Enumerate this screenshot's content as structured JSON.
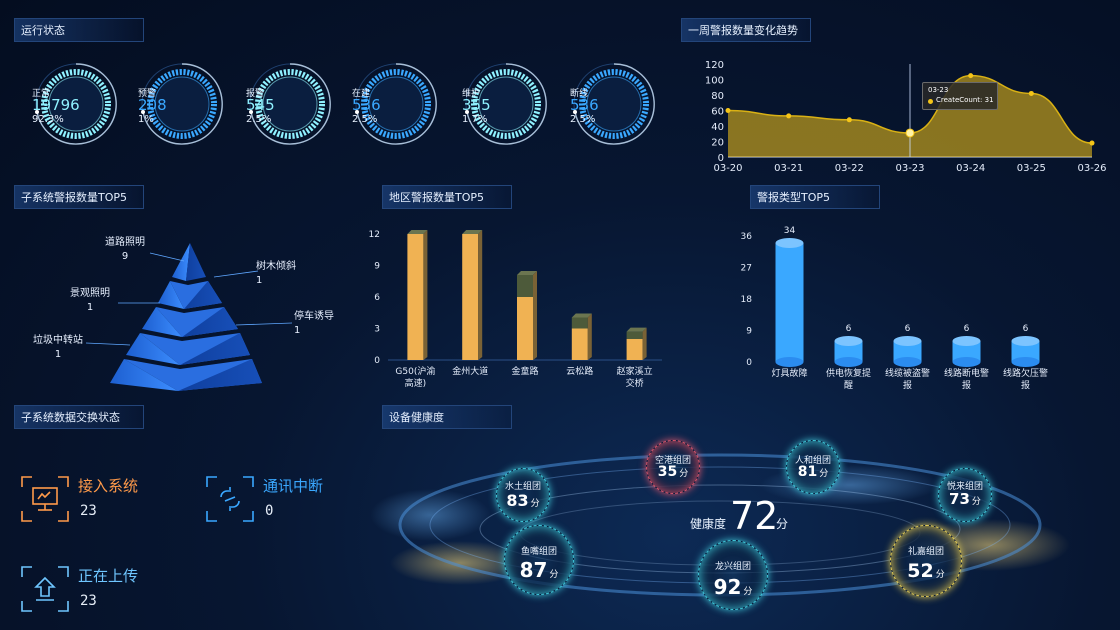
{
  "running": {
    "title": "运行状态",
    "gauges": [
      {
        "label": "正常",
        "value": "19796",
        "percent": "92.3%",
        "color": "#8ff1ff"
      },
      {
        "label": "预警",
        "value": "208",
        "percent": "1%",
        "color": "#3aa8ff"
      },
      {
        "label": "报警",
        "value": "545",
        "percent": "2.5%",
        "color": "#8ff1ff"
      },
      {
        "label": "在建",
        "value": "536",
        "percent": "2.5%",
        "color": "#3aa8ff"
      },
      {
        "label": "维护",
        "value": "355",
        "percent": "1.7%",
        "color": "#8ff1ff"
      },
      {
        "label": "断线",
        "value": "536",
        "percent": "2.5%",
        "color": "#3aa8ff"
      }
    ]
  },
  "trend": {
    "title": "一周警报数量变化趋势",
    "tooltip": {
      "date": "03-23",
      "label": "CreateCount: 31"
    }
  },
  "subsystem_top5": {
    "title": "子系统警报数量TOP5",
    "items": [
      {
        "name": "道路照明",
        "value": "9"
      },
      {
        "name": "树木倾斜",
        "value": "1"
      },
      {
        "name": "景观照明",
        "value": "1"
      },
      {
        "name": "停车诱导",
        "value": "1"
      },
      {
        "name": "垃圾中转站",
        "value": "1"
      }
    ]
  },
  "region_top5": {
    "title": "地区警报数量TOP5"
  },
  "type_top5": {
    "title": "警报类型TOP5"
  },
  "exchange": {
    "title": "子系统数据交换状态",
    "items": [
      {
        "label": "接入系统",
        "value": "23",
        "color": "#ff9a4a"
      },
      {
        "label": "通讯中断",
        "value": "0",
        "color": "#3aa8ff"
      },
      {
        "label": "正在上传",
        "value": "23",
        "color": "#6fc6ff"
      }
    ]
  },
  "health": {
    "title": "设备健康度",
    "center_label": "健康度",
    "center_value": "72",
    "unit": "分",
    "groups": [
      {
        "name": "水土组团",
        "score": "83"
      },
      {
        "name": "空港组团",
        "score": "35"
      },
      {
        "name": "人和组团",
        "score": "81"
      },
      {
        "name": "悦来组团",
        "score": "73"
      },
      {
        "name": "鱼嘴组团",
        "score": "87"
      },
      {
        "name": "龙兴组团",
        "score": "92"
      },
      {
        "name": "礼嘉组团",
        "score": "52"
      }
    ]
  },
  "chart_data": [
    {
      "type": "area",
      "title": "一周警报数量变化趋势",
      "x": [
        "03-20",
        "03-21",
        "03-22",
        "03-23",
        "03-24",
        "03-25",
        "03-26"
      ],
      "series": [
        {
          "values": [
            60,
            53,
            48,
            31,
            105,
            82,
            18
          ]
        }
      ],
      "ylim": [
        0,
        120
      ],
      "yticks": [
        0,
        20,
        40,
        60,
        80,
        100,
        120
      ],
      "color": "#f5c518"
    },
    {
      "type": "bar",
      "title": "地区警报数量TOP5",
      "categories": [
        "G50(沪渝高速)",
        "金州大道",
        "金童路",
        "云松路",
        "赵家溪立交桥"
      ],
      "values": [
        12,
        12,
        6,
        3,
        2
      ],
      "ylim": [
        0,
        12
      ],
      "yticks": [
        0,
        3,
        6,
        9,
        12
      ],
      "color": "#f0b253"
    },
    {
      "type": "bar",
      "title": "警报类型TOP5",
      "categories": [
        "灯具故障",
        "供电恢复提醒",
        "线缆被盗警报",
        "线路断电警报",
        "线路欠压警报"
      ],
      "values": [
        34,
        6,
        6,
        6,
        6
      ],
      "ylim": [
        0,
        36
      ],
      "yticks": [
        0,
        9,
        18,
        27,
        36
      ],
      "color": "#3aa8ff"
    }
  ]
}
